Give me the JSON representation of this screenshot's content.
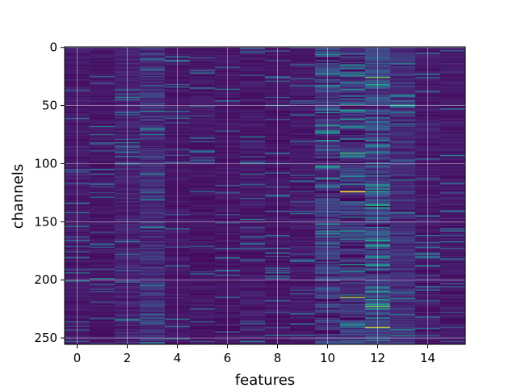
{
  "chart_data": {
    "type": "heatmap",
    "title": "",
    "xlabel": "features",
    "ylabel": "channels",
    "x_range": [
      -0.5,
      15.5
    ],
    "y_range": [
      -0.5,
      255.5
    ],
    "y_inverted": true,
    "x_ticks": [
      0,
      2,
      4,
      6,
      8,
      10,
      12,
      14
    ],
    "y_ticks": [
      0,
      50,
      100,
      150,
      200,
      250
    ],
    "grid": true,
    "colormap": "viridis",
    "n_rows": 256,
    "n_cols": 16,
    "column_typical_intensity": [
      0.12,
      0.1,
      0.16,
      0.22,
      0.1,
      0.1,
      0.1,
      0.12,
      0.1,
      0.12,
      0.3,
      0.28,
      0.35,
      0.22,
      0.12,
      0.12
    ],
    "bright_cells": [
      {
        "row": 124,
        "col": 11,
        "value": 1.0
      },
      {
        "row": 241,
        "col": 12,
        "value": 0.95
      },
      {
        "row": 215,
        "col": 11,
        "value": 0.9
      },
      {
        "row": 223,
        "col": 12,
        "value": 0.85
      },
      {
        "row": 26,
        "col": 12,
        "value": 0.85
      },
      {
        "row": 54,
        "col": 11,
        "value": 0.75
      },
      {
        "row": 91,
        "col": 11,
        "value": 0.8
      },
      {
        "row": 136,
        "col": 12,
        "value": 0.75
      },
      {
        "row": 124,
        "col": 12,
        "value": 0.7
      },
      {
        "row": 187,
        "col": 12,
        "value": 0.65
      },
      {
        "row": 171,
        "col": 12,
        "value": 0.7
      },
      {
        "row": 146,
        "col": 11,
        "value": 0.6
      },
      {
        "row": 22,
        "col": 11,
        "value": 0.55
      },
      {
        "row": 193,
        "col": 11,
        "value": 0.55
      }
    ]
  },
  "colors": {
    "background": "#440154",
    "grid": "#ffffff",
    "axes_text": "#000000"
  }
}
